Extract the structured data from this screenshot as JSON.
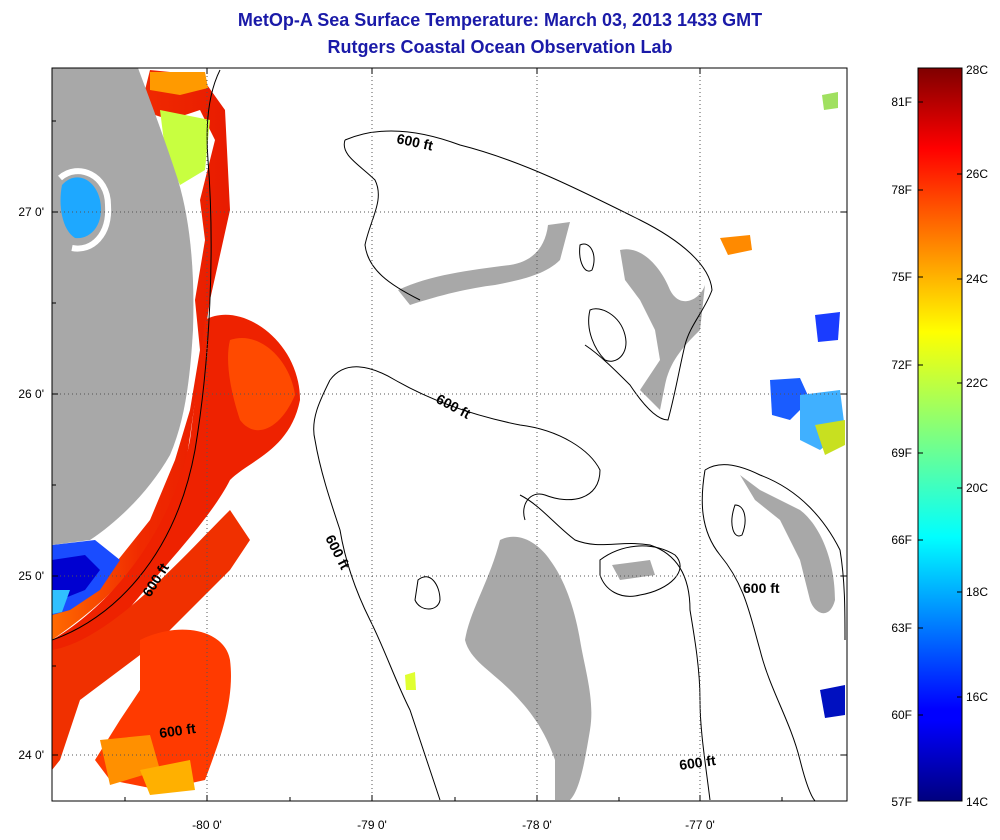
{
  "header": {
    "title": "MetOp-A Sea Surface Temperature:  March 03, 2013 1433 GMT",
    "subtitle": "Rutgers Coastal Ocean Observation Lab"
  },
  "map": {
    "lon_labels": [
      "-80 0'",
      "-79 0'",
      "-78 0'",
      "-77 0'"
    ],
    "lat_labels": [
      "27 0'",
      "26 0'",
      "25 0'",
      "24 0'"
    ],
    "contour_label": "600 ft",
    "land_color": "#a8a8a8",
    "ocean_color": "#ffffff"
  },
  "colorbar": {
    "fahrenheit": [
      "81F",
      "78F",
      "75F",
      "72F",
      "69F",
      "66F",
      "63F",
      "60F",
      "57F"
    ],
    "celsius": [
      "28C",
      "26C",
      "24C",
      "22C",
      "20C",
      "18C",
      "16C",
      "14C"
    ]
  }
}
